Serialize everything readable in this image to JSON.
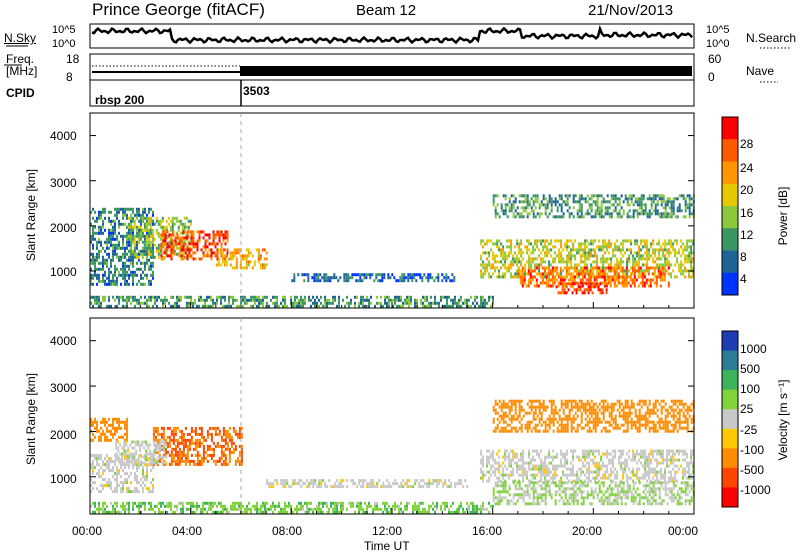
{
  "header": {
    "radar": "Prince George (fitACF)",
    "beam": "Beam 12",
    "date": "21/Nov/2013"
  },
  "noise_panel": {
    "left_label": "N.Sky",
    "right_label": "N.Search",
    "left_ticks": [
      "10^5",
      "10^0"
    ],
    "right_ticks": [
      "10^5",
      "10^0"
    ]
  },
  "freq_panel": {
    "left_label_line1": "Freq.",
    "left_label_line2": "[MHz]",
    "left_ticks": [
      "18",
      "8"
    ],
    "right_label": "Nave",
    "right_ticks": [
      "60",
      "0"
    ]
  },
  "cpid_panel": {
    "label": "CPID",
    "segments": [
      {
        "name": "rbsp 200",
        "start_hour": 0
      },
      {
        "name": "3503",
        "start_hour": 6
      }
    ]
  },
  "axes": {
    "ylabel": "Slant Range [km]",
    "y_ticks": [
      "4000",
      "3000",
      "2000",
      "1000"
    ],
    "x_ticks": [
      "00:00",
      "04:00",
      "08:00",
      "12:00",
      "16:00",
      "20:00",
      "00:00"
    ],
    "xlabel": "Time UT"
  },
  "power_colorbar": {
    "label": "Power [dB]",
    "ticks": [
      "28",
      "24",
      "20",
      "16",
      "12",
      "8",
      "4"
    ],
    "colors": [
      "#ff0000",
      "#ff5a00",
      "#ff9600",
      "#e6c800",
      "#8cc83c",
      "#3c9664",
      "#1e6496",
      "#0032ff"
    ]
  },
  "velocity_colorbar": {
    "label": "Velocity [m s⁻¹]",
    "ticks": [
      "1000",
      "500",
      "100",
      "25",
      "-25",
      "-100",
      "-500",
      "-1000"
    ],
    "colors": [
      "#1e3cb4",
      "#2d7d96",
      "#3cb45a",
      "#82d23c",
      "#c8c8c8",
      "#ffc800",
      "#ff8c00",
      "#ff4600",
      "#ff0000"
    ]
  },
  "chart_data": {
    "type": "heatmap",
    "x_range_hours": [
      0,
      24
    ],
    "y_range_km": [
      180,
      4500
    ],
    "panels": [
      {
        "name": "Power",
        "regions": [
          {
            "t0": 0.0,
            "t1": 2.5,
            "r0": 700,
            "r1": 2400,
            "value": 8
          },
          {
            "t0": 1.5,
            "t1": 4.0,
            "r0": 1300,
            "r1": 2200,
            "value": 14
          },
          {
            "t0": 2.8,
            "t1": 5.5,
            "r0": 1300,
            "r1": 1900,
            "value": 26
          },
          {
            "t0": 5.0,
            "t1": 7.0,
            "r0": 1050,
            "r1": 1500,
            "value": 20
          },
          {
            "t0": 8.0,
            "t1": 14.5,
            "r0": 800,
            "r1": 950,
            "value": 6
          },
          {
            "t0": 0.0,
            "t1": 16.0,
            "r0": 200,
            "r1": 450,
            "value": 10
          },
          {
            "t0": 15.5,
            "t1": 24.0,
            "r0": 900,
            "r1": 1700,
            "value": 16
          },
          {
            "t0": 17.0,
            "t1": 23.0,
            "r0": 650,
            "r1": 1100,
            "value": 25
          },
          {
            "t0": 16.0,
            "t1": 24.0,
            "r0": 2200,
            "r1": 2700,
            "value": 10
          },
          {
            "t0": 18.5,
            "t1": 20.5,
            "r0": 550,
            "r1": 750,
            "value": 28
          }
        ]
      },
      {
        "name": "Velocity",
        "regions": [
          {
            "t0": 0.0,
            "t1": 2.5,
            "r0": 700,
            "r1": 1500,
            "value": 0
          },
          {
            "t0": 0.0,
            "t1": 1.5,
            "r0": 1800,
            "r1": 2300,
            "value": -100
          },
          {
            "t0": 2.5,
            "t1": 6.0,
            "r0": 1300,
            "r1": 2100,
            "value": -300
          },
          {
            "t0": 1.0,
            "t1": 3.0,
            "r0": 1300,
            "r1": 1800,
            "value": 0
          },
          {
            "t0": 7.0,
            "t1": 15.0,
            "r0": 800,
            "r1": 950,
            "value": 0
          },
          {
            "t0": 0.0,
            "t1": 16.0,
            "r0": 200,
            "r1": 450,
            "value": 50
          },
          {
            "t0": 15.5,
            "t1": 24.0,
            "r0": 900,
            "r1": 1600,
            "value": 0
          },
          {
            "t0": 16.0,
            "t1": 24.0,
            "r0": 2000,
            "r1": 2700,
            "value": -150
          },
          {
            "t0": 16.0,
            "t1": 24.0,
            "r0": 400,
            "r1": 900,
            "value": 30
          }
        ]
      }
    ]
  }
}
